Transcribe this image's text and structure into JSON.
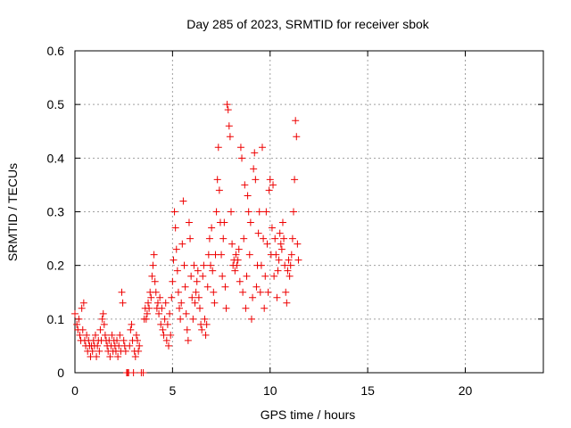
{
  "chart_data": {
    "type": "scatter",
    "title": "Day 285 of 2023, SRMTID for receiver sbok",
    "xlabel": "GPS time / hours",
    "ylabel": "SRMTID / TECUs",
    "xlim": [
      0,
      24
    ],
    "ylim": [
      0,
      0.6
    ],
    "xticks": [
      0,
      5,
      10,
      15,
      20
    ],
    "xtick_labels": [
      "0",
      "5",
      "10",
      "15",
      "20"
    ],
    "yticks": [
      0,
      0.1,
      0.2,
      0.3,
      0.4,
      0.5,
      0.6
    ],
    "ytick_labels": [
      "0",
      "0.1",
      "0.2",
      "0.3",
      "0.4",
      "0.5",
      "0.6"
    ],
    "grid": true,
    "legend": "none",
    "marker": "plus",
    "marker_color": "#ee0000",
    "series": [
      {
        "name": "SRMTID",
        "points": [
          [
            0.0,
            0.11
          ],
          [
            0.1,
            0.09
          ],
          [
            0.15,
            0.08
          ],
          [
            0.2,
            0.1
          ],
          [
            0.25,
            0.07
          ],
          [
            0.3,
            0.06
          ],
          [
            0.35,
            0.12
          ],
          [
            0.4,
            0.08
          ],
          [
            0.45,
            0.13
          ],
          [
            0.5,
            0.06
          ],
          [
            0.55,
            0.05
          ],
          [
            0.6,
            0.07
          ],
          [
            0.65,
            0.04
          ],
          [
            0.7,
            0.06
          ],
          [
            0.75,
            0.05
          ],
          [
            0.8,
            0.03
          ],
          [
            0.85,
            0.05
          ],
          [
            0.9,
            0.04
          ],
          [
            0.95,
            0.06
          ],
          [
            1.0,
            0.05
          ],
          [
            1.05,
            0.07
          ],
          [
            1.1,
            0.03
          ],
          [
            1.15,
            0.05
          ],
          [
            1.2,
            0.06
          ],
          [
            1.25,
            0.04
          ],
          [
            1.3,
            0.08
          ],
          [
            1.35,
            0.06
          ],
          [
            1.4,
            0.1
          ],
          [
            1.45,
            0.11
          ],
          [
            1.5,
            0.09
          ],
          [
            1.55,
            0.07
          ],
          [
            1.6,
            0.06
          ],
          [
            1.65,
            0.05
          ],
          [
            1.7,
            0.04
          ],
          [
            1.75,
            0.06
          ],
          [
            1.8,
            0.03
          ],
          [
            1.85,
            0.05
          ],
          [
            1.9,
            0.07
          ],
          [
            1.95,
            0.04
          ],
          [
            2.0,
            0.06
          ],
          [
            2.05,
            0.05
          ],
          [
            2.1,
            0.04
          ],
          [
            2.15,
            0.06
          ],
          [
            2.2,
            0.03
          ],
          [
            2.25,
            0.05
          ],
          [
            2.3,
            0.07
          ],
          [
            2.35,
            0.04
          ],
          [
            2.4,
            0.15
          ],
          [
            2.45,
            0.13
          ],
          [
            2.5,
            0.06
          ],
          [
            2.55,
            0.05
          ],
          [
            2.6,
            0.04
          ],
          [
            2.65,
            0.0
          ],
          [
            2.7,
            0.0
          ],
          [
            2.75,
            0.0
          ],
          [
            2.8,
            0.05
          ],
          [
            2.85,
            0.08
          ],
          [
            2.9,
            0.09
          ],
          [
            2.95,
            0.06
          ],
          [
            3.0,
            0.0
          ],
          [
            3.05,
            0.04
          ],
          [
            3.1,
            0.03
          ],
          [
            3.15,
            0.07
          ],
          [
            3.2,
            0.06
          ],
          [
            3.25,
            0.04
          ],
          [
            3.3,
            0.05
          ],
          [
            3.4,
            0.0
          ],
          [
            3.5,
            0.0
          ],
          [
            3.55,
            0.1
          ],
          [
            3.6,
            0.12
          ],
          [
            3.65,
            0.1
          ],
          [
            3.7,
            0.11
          ],
          [
            3.75,
            0.13
          ],
          [
            3.8,
            0.12
          ],
          [
            3.85,
            0.15
          ],
          [
            3.9,
            0.14
          ],
          [
            3.95,
            0.18
          ],
          [
            4.0,
            0.2
          ],
          [
            4.05,
            0.22
          ],
          [
            4.1,
            0.17
          ],
          [
            4.15,
            0.15
          ],
          [
            4.2,
            0.12
          ],
          [
            4.25,
            0.13
          ],
          [
            4.3,
            0.11
          ],
          [
            4.35,
            0.14
          ],
          [
            4.4,
            0.09
          ],
          [
            4.45,
            0.12
          ],
          [
            4.5,
            0.08
          ],
          [
            4.55,
            0.07
          ],
          [
            4.6,
            0.1
          ],
          [
            4.65,
            0.13
          ],
          [
            4.7,
            0.06
          ],
          [
            4.75,
            0.09
          ],
          [
            4.8,
            0.05
          ],
          [
            4.85,
            0.11
          ],
          [
            4.9,
            0.07
          ],
          [
            4.95,
            0.14
          ],
          [
            5.0,
            0.17
          ],
          [
            5.05,
            0.21
          ],
          [
            5.1,
            0.3
          ],
          [
            5.15,
            0.27
          ],
          [
            5.2,
            0.23
          ],
          [
            5.25,
            0.19
          ],
          [
            5.3,
            0.15
          ],
          [
            5.35,
            0.12
          ],
          [
            5.4,
            0.1
          ],
          [
            5.45,
            0.13
          ],
          [
            5.5,
            0.24
          ],
          [
            5.55,
            0.32
          ],
          [
            5.6,
            0.2
          ],
          [
            5.65,
            0.16
          ],
          [
            5.7,
            0.11
          ],
          [
            5.75,
            0.08
          ],
          [
            5.8,
            0.06
          ],
          [
            5.85,
            0.28
          ],
          [
            5.9,
            0.25
          ],
          [
            5.95,
            0.18
          ],
          [
            6.0,
            0.14
          ],
          [
            6.05,
            0.1
          ],
          [
            6.1,
            0.2
          ],
          [
            6.15,
            0.13
          ],
          [
            6.2,
            0.15
          ],
          [
            6.25,
            0.17
          ],
          [
            6.3,
            0.19
          ],
          [
            6.35,
            0.14
          ],
          [
            6.4,
            0.12
          ],
          [
            6.45,
            0.09
          ],
          [
            6.5,
            0.08
          ],
          [
            6.55,
            0.18
          ],
          [
            6.6,
            0.2
          ],
          [
            6.65,
            0.1
          ],
          [
            6.7,
            0.07
          ],
          [
            6.75,
            0.09
          ],
          [
            6.8,
            0.16
          ],
          [
            6.85,
            0.22
          ],
          [
            6.9,
            0.25
          ],
          [
            6.95,
            0.2
          ],
          [
            7.0,
            0.27
          ],
          [
            7.05,
            0.19
          ],
          [
            7.1,
            0.15
          ],
          [
            7.15,
            0.13
          ],
          [
            7.2,
            0.22
          ],
          [
            7.25,
            0.3
          ],
          [
            7.3,
            0.36
          ],
          [
            7.35,
            0.42
          ],
          [
            7.4,
            0.34
          ],
          [
            7.45,
            0.28
          ],
          [
            7.5,
            0.22
          ],
          [
            7.55,
            0.18
          ],
          [
            7.6,
            0.25
          ],
          [
            7.65,
            0.28
          ],
          [
            7.7,
            0.16
          ],
          [
            7.75,
            0.12
          ],
          [
            7.8,
            0.5
          ],
          [
            7.85,
            0.49
          ],
          [
            7.9,
            0.46
          ],
          [
            7.95,
            0.44
          ],
          [
            8.0,
            0.3
          ],
          [
            8.05,
            0.24
          ],
          [
            8.1,
            0.2
          ],
          [
            8.15,
            0.21
          ],
          [
            8.2,
            0.19
          ],
          [
            8.25,
            0.22
          ],
          [
            8.3,
            0.2
          ],
          [
            8.35,
            0.21
          ],
          [
            8.4,
            0.23
          ],
          [
            8.45,
            0.17
          ],
          [
            8.5,
            0.42
          ],
          [
            8.55,
            0.4
          ],
          [
            8.6,
            0.15
          ],
          [
            8.65,
            0.25
          ],
          [
            8.7,
            0.35
          ],
          [
            8.75,
            0.12
          ],
          [
            8.8,
            0.18
          ],
          [
            8.85,
            0.33
          ],
          [
            8.9,
            0.3
          ],
          [
            8.95,
            0.22
          ],
          [
            9.0,
            0.28
          ],
          [
            9.05,
            0.1
          ],
          [
            9.1,
            0.14
          ],
          [
            9.15,
            0.38
          ],
          [
            9.2,
            0.41
          ],
          [
            9.25,
            0.36
          ],
          [
            9.3,
            0.16
          ],
          [
            9.35,
            0.2
          ],
          [
            9.4,
            0.26
          ],
          [
            9.45,
            0.3
          ],
          [
            9.5,
            0.15
          ],
          [
            9.55,
            0.2
          ],
          [
            9.6,
            0.42
          ],
          [
            9.65,
            0.25
          ],
          [
            9.7,
            0.12
          ],
          [
            9.75,
            0.18
          ],
          [
            9.8,
            0.3
          ],
          [
            9.85,
            0.24
          ],
          [
            9.9,
            0.15
          ],
          [
            9.95,
            0.34
          ],
          [
            10.0,
            0.36
          ],
          [
            10.05,
            0.22
          ],
          [
            10.1,
            0.27
          ],
          [
            10.15,
            0.35
          ],
          [
            10.2,
            0.18
          ],
          [
            10.25,
            0.25
          ],
          [
            10.3,
            0.22
          ],
          [
            10.35,
            0.14
          ],
          [
            10.4,
            0.19
          ],
          [
            10.45,
            0.21
          ],
          [
            10.5,
            0.26
          ],
          [
            10.55,
            0.24
          ],
          [
            10.6,
            0.23
          ],
          [
            10.65,
            0.28
          ],
          [
            10.7,
            0.25
          ],
          [
            10.75,
            0.2
          ],
          [
            10.8,
            0.15
          ],
          [
            10.85,
            0.13
          ],
          [
            10.9,
            0.19
          ],
          [
            10.95,
            0.21
          ],
          [
            11.0,
            0.18
          ],
          [
            11.05,
            0.2
          ],
          [
            11.1,
            0.22
          ],
          [
            11.15,
            0.25
          ],
          [
            11.2,
            0.3
          ],
          [
            11.25,
            0.36
          ],
          [
            11.3,
            0.47
          ],
          [
            11.35,
            0.44
          ],
          [
            11.4,
            0.24
          ],
          [
            11.45,
            0.21
          ]
        ]
      }
    ]
  }
}
